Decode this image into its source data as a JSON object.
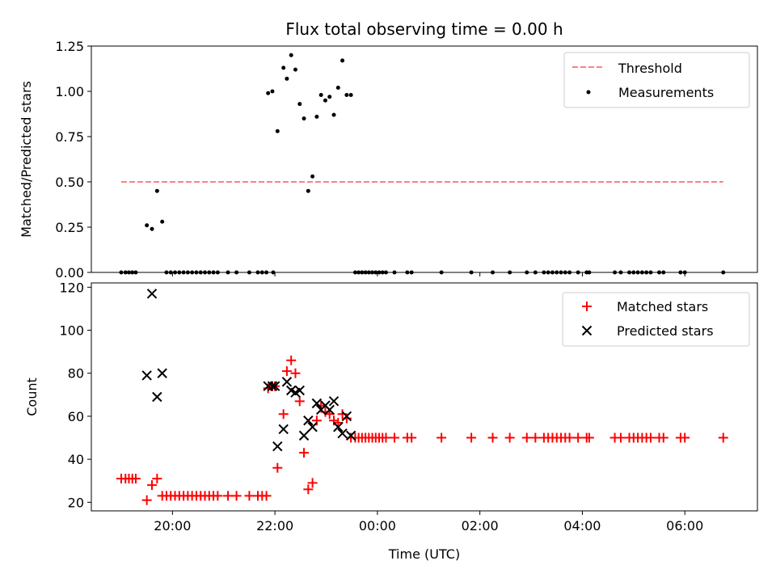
{
  "chart_data": [
    {
      "type": "scatter",
      "title": "Flux total observing time = 0.00 h",
      "xlabel": "",
      "ylabel": "Matched/Predicted stars",
      "ylim": [
        0,
        1.25
      ],
      "yticks": [
        "0.00",
        "0.25",
        "0.50",
        "0.75",
        "1.00",
        "1.25"
      ],
      "grid": false,
      "legend_position": "top-right",
      "threshold": {
        "name": "Threshold",
        "value": 0.5,
        "x_range": [
          "19:00",
          "06:45"
        ],
        "color": "#ff7f7f"
      },
      "series": [
        {
          "name": "Measurements",
          "color": "#000000",
          "points": [
            [
              "19:00",
              0
            ],
            [
              "19:05",
              0
            ],
            [
              "19:09",
              0
            ],
            [
              "19:13",
              0
            ],
            [
              "19:17",
              0
            ],
            [
              "19:30",
              0.26
            ],
            [
              "19:36",
              0.24
            ],
            [
              "19:42",
              0.45
            ],
            [
              "19:48",
              0.28
            ],
            [
              "19:53",
              0
            ],
            [
              "19:58",
              0
            ],
            [
              "20:03",
              0
            ],
            [
              "20:08",
              0
            ],
            [
              "20:13",
              0
            ],
            [
              "20:18",
              0
            ],
            [
              "20:23",
              0
            ],
            [
              "20:28",
              0
            ],
            [
              "20:33",
              0
            ],
            [
              "20:38",
              0
            ],
            [
              "20:43",
              0
            ],
            [
              "20:48",
              0
            ],
            [
              "20:53",
              0
            ],
            [
              "21:05",
              0
            ],
            [
              "21:15",
              0
            ],
            [
              "21:30",
              0
            ],
            [
              "21:40",
              0
            ],
            [
              "21:45",
              0
            ],
            [
              "21:50",
              0
            ],
            [
              "21:52",
              0.99
            ],
            [
              "21:57",
              1.0
            ],
            [
              "21:58",
              0
            ],
            [
              "22:03",
              0.78
            ],
            [
              "22:10",
              1.13
            ],
            [
              "22:14",
              1.07
            ],
            [
              "22:19",
              1.2
            ],
            [
              "22:24",
              1.12
            ],
            [
              "22:29",
              0.93
            ],
            [
              "22:34",
              0.85
            ],
            [
              "22:39",
              0.45
            ],
            [
              "22:44",
              0.53
            ],
            [
              "22:49",
              0.86
            ],
            [
              "22:54",
              0.98
            ],
            [
              "22:59",
              0.95
            ],
            [
              "23:04",
              0.97
            ],
            [
              "23:09",
              0.87
            ],
            [
              "23:14",
              1.02
            ],
            [
              "23:19",
              1.17
            ],
            [
              "23:24",
              0.98
            ],
            [
              "23:29",
              0.98
            ],
            [
              "23:34",
              0
            ],
            [
              "23:38",
              0
            ],
            [
              "23:42",
              0
            ],
            [
              "23:46",
              0
            ],
            [
              "23:50",
              0
            ],
            [
              "23:54",
              0
            ],
            [
              "23:58",
              0
            ],
            [
              "00:02",
              0
            ],
            [
              "00:06",
              0
            ],
            [
              "00:10",
              0
            ],
            [
              "00:20",
              0
            ],
            [
              "00:35",
              0
            ],
            [
              "00:40",
              0
            ],
            [
              "01:15",
              0
            ],
            [
              "01:50",
              0
            ],
            [
              "02:15",
              0
            ],
            [
              "02:35",
              0
            ],
            [
              "02:55",
              0
            ],
            [
              "03:05",
              0
            ],
            [
              "03:15",
              0
            ],
            [
              "03:20",
              0
            ],
            [
              "03:25",
              0
            ],
            [
              "03:30",
              0
            ],
            [
              "03:35",
              0
            ],
            [
              "03:40",
              0
            ],
            [
              "03:45",
              0
            ],
            [
              "03:55",
              0
            ],
            [
              "04:05",
              0
            ],
            [
              "04:08",
              0
            ],
            [
              "04:38",
              0
            ],
            [
              "04:45",
              0
            ],
            [
              "04:55",
              0
            ],
            [
              "05:00",
              0
            ],
            [
              "05:05",
              0
            ],
            [
              "05:10",
              0
            ],
            [
              "05:15",
              0
            ],
            [
              "05:20",
              0
            ],
            [
              "05:30",
              0
            ],
            [
              "05:35",
              0
            ],
            [
              "05:55",
              0
            ],
            [
              "06:00",
              0
            ],
            [
              "06:45",
              0
            ]
          ]
        }
      ]
    },
    {
      "type": "scatter",
      "title": "",
      "xlabel": "Time (UTC)",
      "ylabel": "Count",
      "xlim": [
        "18:25",
        "07:25"
      ],
      "ylim": [
        16,
        122
      ],
      "xticks": [
        "20:00",
        "22:00",
        "00:00",
        "02:00",
        "04:00",
        "06:00"
      ],
      "yticks": [
        "20",
        "40",
        "60",
        "80",
        "100",
        "120"
      ],
      "grid": false,
      "legend_position": "top-right",
      "series": [
        {
          "name": "Matched stars",
          "marker": "+",
          "color": "#ff0000",
          "points": [
            [
              "19:00",
              31
            ],
            [
              "19:05",
              31
            ],
            [
              "19:09",
              31
            ],
            [
              "19:13",
              31
            ],
            [
              "19:17",
              31
            ],
            [
              "19:30",
              21
            ],
            [
              "19:36",
              28
            ],
            [
              "19:42",
              31
            ],
            [
              "19:48",
              23
            ],
            [
              "19:53",
              23
            ],
            [
              "19:58",
              23
            ],
            [
              "20:03",
              23
            ],
            [
              "20:08",
              23
            ],
            [
              "20:13",
              23
            ],
            [
              "20:18",
              23
            ],
            [
              "20:23",
              23
            ],
            [
              "20:28",
              23
            ],
            [
              "20:33",
              23
            ],
            [
              "20:38",
              23
            ],
            [
              "20:43",
              23
            ],
            [
              "20:48",
              23
            ],
            [
              "20:53",
              23
            ],
            [
              "21:05",
              23
            ],
            [
              "21:15",
              23
            ],
            [
              "21:30",
              23
            ],
            [
              "21:40",
              23
            ],
            [
              "21:45",
              23
            ],
            [
              "21:50",
              23
            ],
            [
              "21:52",
              73
            ],
            [
              "21:57",
              74
            ],
            [
              "22:00",
              74
            ],
            [
              "22:03",
              36
            ],
            [
              "22:10",
              61
            ],
            [
              "22:14",
              81
            ],
            [
              "22:19",
              86
            ],
            [
              "22:24",
              80
            ],
            [
              "22:29",
              67
            ],
            [
              "22:34",
              43
            ],
            [
              "22:39",
              26
            ],
            [
              "22:44",
              29
            ],
            [
              "22:49",
              58
            ],
            [
              "22:54",
              65
            ],
            [
              "22:59",
              62
            ],
            [
              "23:04",
              61
            ],
            [
              "23:09",
              58
            ],
            [
              "23:14",
              57
            ],
            [
              "23:19",
              61
            ],
            [
              "23:24",
              59
            ],
            [
              "23:29",
              50
            ],
            [
              "23:34",
              50
            ],
            [
              "23:38",
              50
            ],
            [
              "23:42",
              50
            ],
            [
              "23:46",
              50
            ],
            [
              "23:50",
              50
            ],
            [
              "23:54",
              50
            ],
            [
              "23:58",
              50
            ],
            [
              "00:02",
              50
            ],
            [
              "00:06",
              50
            ],
            [
              "00:10",
              50
            ],
            [
              "00:20",
              50
            ],
            [
              "00:35",
              50
            ],
            [
              "00:40",
              50
            ],
            [
              "01:15",
              50
            ],
            [
              "01:50",
              50
            ],
            [
              "02:15",
              50
            ],
            [
              "02:35",
              50
            ],
            [
              "02:55",
              50
            ],
            [
              "03:05",
              50
            ],
            [
              "03:15",
              50
            ],
            [
              "03:20",
              50
            ],
            [
              "03:25",
              50
            ],
            [
              "03:30",
              50
            ],
            [
              "03:35",
              50
            ],
            [
              "03:40",
              50
            ],
            [
              "03:45",
              50
            ],
            [
              "03:55",
              50
            ],
            [
              "04:05",
              50
            ],
            [
              "04:08",
              50
            ],
            [
              "04:38",
              50
            ],
            [
              "04:45",
              50
            ],
            [
              "04:55",
              50
            ],
            [
              "05:00",
              50
            ],
            [
              "05:05",
              50
            ],
            [
              "05:10",
              50
            ],
            [
              "05:15",
              50
            ],
            [
              "05:20",
              50
            ],
            [
              "05:30",
              50
            ],
            [
              "05:35",
              50
            ],
            [
              "05:55",
              50
            ],
            [
              "06:00",
              50
            ],
            [
              "06:45",
              50
            ]
          ]
        },
        {
          "name": "Predicted stars",
          "marker": "x",
          "color": "#000000",
          "points": [
            [
              "19:30",
              79
            ],
            [
              "19:36",
              117
            ],
            [
              "19:42",
              69
            ],
            [
              "19:48",
              80
            ],
            [
              "21:52",
              74
            ],
            [
              "21:57",
              74
            ],
            [
              "22:00",
              74
            ],
            [
              "22:03",
              46
            ],
            [
              "22:10",
              54
            ],
            [
              "22:14",
              76
            ],
            [
              "22:19",
              72
            ],
            [
              "22:24",
              71
            ],
            [
              "22:29",
              72
            ],
            [
              "22:34",
              51
            ],
            [
              "22:39",
              58
            ],
            [
              "22:44",
              55
            ],
            [
              "22:49",
              66
            ],
            [
              "22:54",
              63
            ],
            [
              "22:59",
              65
            ],
            [
              "23:04",
              63
            ],
            [
              "23:09",
              67
            ],
            [
              "23:14",
              55
            ],
            [
              "23:19",
              52
            ],
            [
              "23:24",
              60
            ],
            [
              "23:29",
              51
            ]
          ]
        }
      ]
    }
  ]
}
